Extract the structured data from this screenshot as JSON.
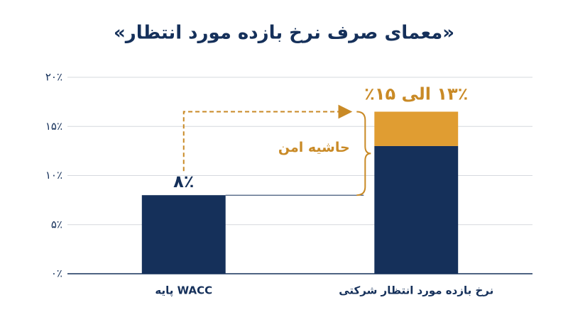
{
  "chart_data": {
    "type": "stacked-bar",
    "title": "«معمای صرف نرخ بازده مورد انتظار»",
    "categories": [
      "WACC پایه",
      "نرخ بازده مورد انتظار شرکتی"
    ],
    "series": [
      {
        "color": "#15305a",
        "values": [
          8,
          13
        ],
        "value_labels": [
          "۸٪",
          null
        ]
      },
      {
        "color": "#e09d32",
        "values": [
          null,
          3.5
        ]
      }
    ],
    "annotations": [
      {
        "text": "۱۳٪ الی ۱۵٪",
        "color": "#c98a26"
      },
      {
        "text": "حاشیه امن",
        "color": "#c98a26"
      }
    ],
    "ylim": [
      0,
      20
    ],
    "yticks": [
      {
        "value": 0,
        "label": "۰٪"
      },
      {
        "value": 5,
        "label": "۵٪"
      },
      {
        "value": 10,
        "label": "۱۰٪"
      },
      {
        "value": 15,
        "label": "۱۵٪"
      },
      {
        "value": 20,
        "label": "۲۰٪"
      }
    ],
    "grid": true
  }
}
